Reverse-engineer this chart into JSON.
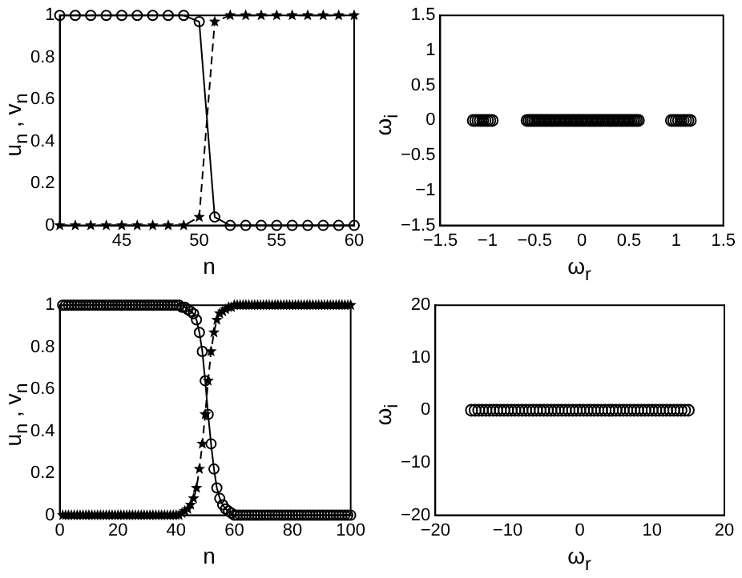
{
  "chart_data": [
    {
      "type": "line",
      "xlabel": "n",
      "ylabel": "u$_{n}$ , v$_{n}$",
      "x": [
        41,
        42,
        43,
        44,
        45,
        46,
        47,
        48,
        49,
        50,
        51,
        52,
        53,
        54,
        55,
        56,
        57,
        58,
        59,
        60
      ],
      "xlim": [
        41,
        60
      ],
      "xticks": [
        45,
        50,
        55,
        60
      ],
      "ylim": [
        0,
        1
      ],
      "yticks": [
        0,
        0.2,
        0.4,
        0.6,
        0.8,
        1
      ],
      "grid": false,
      "legend": false,
      "series": [
        {
          "color": "#000000",
          "marker": "circle",
          "line_style": "solid",
          "values": [
            1,
            1,
            1,
            1,
            1,
            1,
            1,
            1,
            1,
            0.97,
            0.04,
            0,
            0,
            0,
            0,
            0,
            0,
            0,
            0,
            0
          ]
        },
        {
          "color": "#000000",
          "marker": "star",
          "line_style": "dashed",
          "values": [
            0,
            0,
            0,
            0,
            0,
            0,
            0,
            0,
            0,
            0.04,
            0.97,
            1,
            1,
            1,
            1,
            1,
            1,
            1,
            1,
            1
          ]
        }
      ]
    },
    {
      "type": "scatter",
      "xlabel": "ω$_{r}$",
      "ylabel": "ω$_{i}$",
      "x": [
        -1.15,
        -1.125,
        -1.1,
        -1.075,
        -1.05,
        -1.025,
        -1.0,
        -0.975,
        -0.95,
        -0.58,
        -0.56,
        -0.54,
        -0.52,
        -0.5,
        -0.48,
        -0.46,
        -0.44,
        -0.42,
        -0.4,
        -0.38,
        -0.36,
        -0.34,
        -0.32,
        -0.3,
        -0.28,
        -0.26,
        -0.24,
        -0.22,
        -0.2,
        -0.18,
        -0.16,
        -0.14,
        -0.12,
        -0.1,
        -0.08,
        -0.06,
        -0.04,
        -0.02,
        0,
        0.02,
        0.04,
        0.06,
        0.08,
        0.1,
        0.12,
        0.14,
        0.16,
        0.18,
        0.2,
        0.22,
        0.24,
        0.26,
        0.28,
        0.3,
        0.32,
        0.34,
        0.36,
        0.38,
        0.4,
        0.42,
        0.44,
        0.46,
        0.48,
        0.5,
        0.52,
        0.54,
        0.56,
        0.58,
        0.6,
        0.95,
        0.975,
        1.0,
        1.025,
        1.05,
        1.075,
        1.1,
        1.125,
        1.15
      ],
      "xlim": [
        -1.5,
        1.5
      ],
      "xticks": [
        -1.5,
        -1,
        -0.5,
        0,
        0.5,
        1,
        1.5
      ],
      "ylim": [
        -1.5,
        1.5
      ],
      "yticks": [
        -1.5,
        -1,
        -0.5,
        0,
        0.5,
        1,
        1.5
      ],
      "grid": false,
      "legend": false,
      "marker": "circle",
      "series": [
        {
          "color": "#000000",
          "values": [
            0,
            0,
            0,
            0,
            0,
            0,
            0,
            0,
            0,
            0,
            0,
            0,
            0,
            0,
            0,
            0,
            0,
            0,
            0,
            0,
            0,
            0,
            0,
            0,
            0,
            0,
            0,
            0,
            0,
            0,
            0,
            0,
            0,
            0,
            0,
            0,
            0,
            0,
            0,
            0,
            0,
            0,
            0,
            0,
            0,
            0,
            0,
            0,
            0,
            0,
            0,
            0,
            0,
            0,
            0,
            0,
            0,
            0,
            0,
            0,
            0,
            0,
            0,
            0,
            0,
            0,
            0,
            0,
            0,
            0,
            0,
            0,
            0,
            0,
            0,
            0,
            0,
            0
          ]
        }
      ]
    },
    {
      "type": "line",
      "xlabel": "n",
      "ylabel": "u$_{n}$ , v$_{n}$",
      "x": [
        1,
        2,
        3,
        4,
        5,
        6,
        7,
        8,
        9,
        10,
        11,
        12,
        13,
        14,
        15,
        16,
        17,
        18,
        19,
        20,
        21,
        22,
        23,
        24,
        25,
        26,
        27,
        28,
        29,
        30,
        31,
        32,
        33,
        34,
        35,
        36,
        37,
        38,
        39,
        40,
        41,
        42,
        43,
        44,
        45,
        46,
        47,
        48,
        49,
        50,
        51,
        52,
        53,
        54,
        55,
        56,
        57,
        58,
        59,
        60,
        61,
        62,
        63,
        64,
        65,
        66,
        67,
        68,
        69,
        70,
        71,
        72,
        73,
        74,
        75,
        76,
        77,
        78,
        79,
        80,
        81,
        82,
        83,
        84,
        85,
        86,
        87,
        88,
        89,
        90,
        91,
        92,
        93,
        94,
        95,
        96,
        97,
        98,
        99,
        100
      ],
      "xlim": [
        0,
        100
      ],
      "xticks": [
        0,
        20,
        40,
        60,
        80,
        100
      ],
      "ylim": [
        0,
        1
      ],
      "yticks": [
        0,
        0.2,
        0.4,
        0.6,
        0.8,
        1
      ],
      "grid": false,
      "legend": false,
      "series": [
        {
          "color": "#000000",
          "marker": "circle",
          "line_style": "solid",
          "values": [
            1,
            1,
            1,
            1,
            1,
            1,
            1,
            1,
            1,
            1,
            1,
            1,
            1,
            1,
            1,
            1,
            1,
            1,
            1,
            1,
            1,
            1,
            1,
            1,
            1,
            1,
            1,
            1,
            1,
            1,
            1,
            1,
            1,
            1,
            1,
            1,
            1,
            1,
            1,
            1,
            1,
            0.99,
            0.99,
            0.98,
            0.97,
            0.96,
            0.93,
            0.87,
            0.78,
            0.64,
            0.48,
            0.34,
            0.22,
            0.13,
            0.08,
            0.05,
            0.03,
            0.02,
            0.01,
            0,
            0,
            0,
            0,
            0,
            0,
            0,
            0,
            0,
            0,
            0,
            0,
            0,
            0,
            0,
            0,
            0,
            0,
            0,
            0,
            0,
            0,
            0,
            0,
            0,
            0,
            0,
            0,
            0,
            0,
            0,
            0,
            0,
            0,
            0,
            0,
            0,
            0,
            0,
            0,
            0
          ]
        },
        {
          "color": "#000000",
          "marker": "star",
          "line_style": "dashed",
          "values": [
            0,
            0,
            0,
            0,
            0,
            0,
            0,
            0,
            0,
            0,
            0,
            0,
            0,
            0,
            0,
            0,
            0,
            0,
            0,
            0,
            0,
            0,
            0,
            0,
            0,
            0,
            0,
            0,
            0,
            0,
            0,
            0,
            0,
            0,
            0,
            0,
            0,
            0,
            0,
            0,
            0,
            0.01,
            0.02,
            0.03,
            0.05,
            0.08,
            0.13,
            0.22,
            0.34,
            0.48,
            0.64,
            0.78,
            0.87,
            0.93,
            0.96,
            0.97,
            0.98,
            0.99,
            0.99,
            1,
            1,
            1,
            1,
            1,
            1,
            1,
            1,
            1,
            1,
            1,
            1,
            1,
            1,
            1,
            1,
            1,
            1,
            1,
            1,
            1,
            1,
            1,
            1,
            1,
            1,
            1,
            1,
            1,
            1,
            1,
            1,
            1,
            1,
            1,
            1,
            1,
            1,
            1,
            1,
            1
          ]
        }
      ]
    },
    {
      "type": "scatter",
      "xlabel": "ω$_{r}$",
      "ylabel": "ω$_{i}$",
      "x": [
        -15,
        -14.5,
        -14,
        -13.5,
        -13,
        -12.5,
        -12,
        -11.5,
        -11,
        -10.5,
        -10,
        -9.5,
        -9,
        -8.5,
        -8,
        -7.5,
        -7,
        -6.5,
        -6,
        -5.5,
        -5,
        -4.5,
        -4,
        -3.5,
        -3,
        -2.5,
        -2,
        -1.5,
        -1,
        -0.5,
        0,
        0.5,
        1,
        1.5,
        2,
        2.5,
        3,
        3.5,
        4,
        4.5,
        5,
        5.5,
        6,
        6.5,
        7,
        7.5,
        8,
        8.5,
        9,
        9.5,
        10,
        10.5,
        11,
        11.5,
        12,
        12.5,
        13,
        13.5,
        14,
        14.5,
        15
      ],
      "xlim": [
        -20,
        20
      ],
      "xticks": [
        -20,
        -10,
        0,
        10,
        20
      ],
      "ylim": [
        -20,
        20
      ],
      "yticks": [
        -20,
        -10,
        0,
        10,
        20
      ],
      "grid": false,
      "legend": false,
      "marker": "circle",
      "series": [
        {
          "color": "#000000",
          "values": [
            0,
            0,
            0,
            0,
            0,
            0,
            0,
            0,
            0,
            0,
            0,
            0,
            0,
            0,
            0,
            0,
            0,
            0,
            0,
            0,
            0,
            0,
            0,
            0,
            0,
            0,
            0,
            0,
            0,
            0,
            0,
            0,
            0,
            0,
            0,
            0,
            0,
            0,
            0,
            0,
            0,
            0,
            0,
            0,
            0,
            0,
            0,
            0,
            0,
            0,
            0,
            0,
            0,
            0,
            0,
            0,
            0,
            0,
            0,
            0,
            0
          ]
        }
      ]
    }
  ]
}
